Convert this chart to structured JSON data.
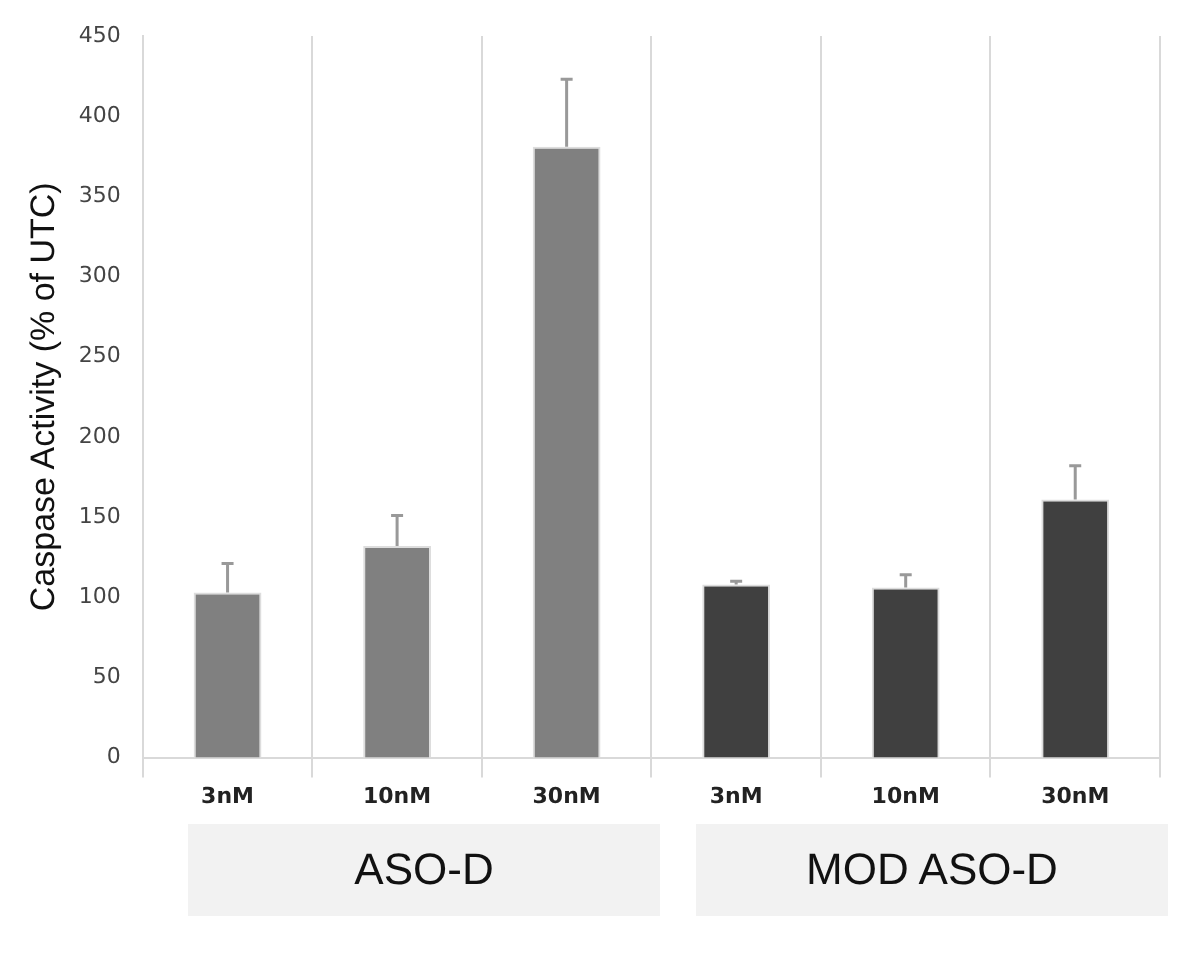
{
  "chart_data": {
    "type": "bar",
    "ylabel": "Caspase Activity (% of UTC)",
    "categories": [
      "3nM",
      "10nM",
      "30nM",
      "3nM",
      "10nM",
      "30nM"
    ],
    "values": [
      103,
      132,
      381,
      108,
      106,
      161
    ],
    "colors": [
      "#808080",
      "#808080",
      "#808080",
      "#404040",
      "#404040",
      "#404040"
    ],
    "errors": [
      [
        103,
        121
      ],
      [
        132,
        151
      ],
      [
        381,
        423
      ],
      [
        108,
        110
      ],
      [
        106,
        114
      ],
      [
        161,
        182
      ]
    ],
    "ylim": [
      0,
      450
    ],
    "yticks": [
      0,
      50,
      100,
      150,
      200,
      250,
      300,
      350,
      400,
      450
    ],
    "grid": false,
    "legend": false,
    "annotations": [
      "ASO-D",
      "MOD ASO-D"
    ]
  }
}
